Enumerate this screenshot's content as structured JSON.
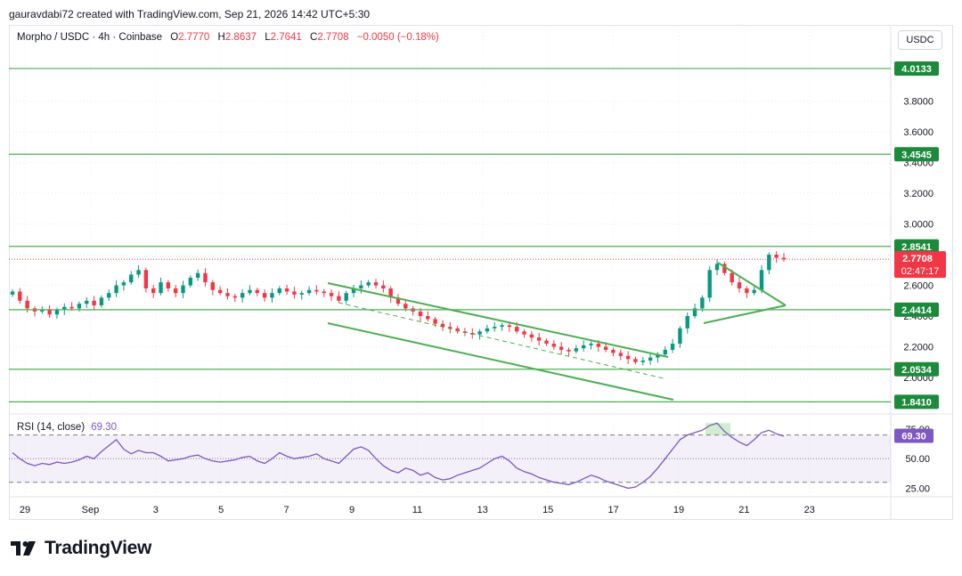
{
  "header": {
    "created_by": "gauravdabi72 created with TradingView.com, Sep 21, 2026 14:42 UTC+5:30"
  },
  "legend": {
    "symbol": "Morpho / USDC · 4h · Coinbase",
    "o_label": "O",
    "o_value": "2.7770",
    "h_label": "H",
    "h_value": "2.8637",
    "l_label": "L",
    "l_value": "2.7641",
    "c_label": "C",
    "c_value": "2.7708",
    "change": "−0.0050 (−0.18%)"
  },
  "currency_button": "USDC",
  "rsi_legend": {
    "label": "RSI (14, close)",
    "value": "69.30"
  },
  "footer": {
    "brand": "TradingView"
  },
  "colors": {
    "up": "#089981",
    "down": "#f23645",
    "level_line": "#4caf50",
    "level_label": "#1b8a3a",
    "rsi": "#7e57c2",
    "price_label": "#f23645"
  },
  "chart_data": [
    {
      "type": "candlestick",
      "symbol": "Morpho / USDC",
      "timeframe": "4h",
      "y_axis": {
        "ticks": [
          "3.8000",
          "3.6000",
          "3.4000",
          "3.2000",
          "3.0000",
          "2.8000",
          "2.6000",
          "2.4000",
          "2.2000",
          "2.0000"
        ],
        "ylim": [
          1.82,
          4.1
        ]
      },
      "x_axis": {
        "ticks": [
          "29",
          "Sep",
          "3",
          "5",
          "7",
          "9",
          "11",
          "13",
          "15",
          "17",
          "19",
          "21",
          "23"
        ]
      },
      "last_price": "2.7708",
      "countdown": "02:47:17",
      "horizontal_levels": [
        "4.0133",
        "3.4545",
        "2.8541",
        "2.4414",
        "2.0534",
        "1.8410"
      ],
      "approx_closes": [
        2.56,
        2.5,
        2.45,
        2.43,
        2.44,
        2.41,
        2.44,
        2.46,
        2.45,
        2.48,
        2.5,
        2.47,
        2.52,
        2.55,
        2.6,
        2.62,
        2.67,
        2.7,
        2.58,
        2.55,
        2.62,
        2.58,
        2.55,
        2.6,
        2.65,
        2.68,
        2.62,
        2.57,
        2.55,
        2.53,
        2.52,
        2.55,
        2.57,
        2.55,
        2.52,
        2.55,
        2.58,
        2.56,
        2.54,
        2.55,
        2.57,
        2.56,
        2.55,
        2.53,
        2.5,
        2.55,
        2.58,
        2.6,
        2.62,
        2.6,
        2.58,
        2.52,
        2.48,
        2.45,
        2.43,
        2.4,
        2.38,
        2.35,
        2.33,
        2.32,
        2.3,
        2.29,
        2.28,
        2.3,
        2.32,
        2.33,
        2.34,
        2.33,
        2.3,
        2.28,
        2.26,
        2.24,
        2.22,
        2.2,
        2.18,
        2.17,
        2.19,
        2.21,
        2.22,
        2.2,
        2.18,
        2.16,
        2.14,
        2.12,
        2.1,
        2.11,
        2.13,
        2.15,
        2.18,
        2.22,
        2.32,
        2.4,
        2.45,
        2.52,
        2.7,
        2.74,
        2.68,
        2.62,
        2.58,
        2.55,
        2.57,
        2.7,
        2.8,
        2.78,
        2.77
      ]
    },
    {
      "type": "line",
      "name": "RSI (14, close)",
      "y_axis": {
        "ticks": [
          "75.00",
          "50.00",
          "25.00"
        ],
        "ylim": [
          20,
          84
        ]
      },
      "bands": [
        70,
        50,
        30
      ],
      "current": "69.30",
      "approx_values": [
        55,
        50,
        46,
        44,
        46,
        45,
        47,
        46,
        47,
        49,
        52,
        50,
        56,
        61,
        66,
        58,
        54,
        57,
        55,
        55,
        52,
        48,
        49,
        50,
        52,
        53,
        50,
        48,
        47,
        48,
        49,
        51,
        52,
        48,
        46,
        50,
        55,
        52,
        50,
        51,
        52,
        54,
        50,
        48,
        46,
        52,
        58,
        60,
        57,
        50,
        44,
        40,
        38,
        42,
        40,
        36,
        38,
        34,
        32,
        33,
        36,
        38,
        40,
        42,
        46,
        50,
        52,
        48,
        42,
        39,
        37,
        34,
        32,
        30,
        29,
        28,
        30,
        33,
        36,
        34,
        31,
        29,
        27,
        25,
        26,
        30,
        35,
        42,
        50,
        58,
        66,
        70,
        72,
        74,
        78,
        80,
        73,
        68,
        64,
        61,
        66,
        72,
        74,
        71,
        69
      ]
    }
  ]
}
